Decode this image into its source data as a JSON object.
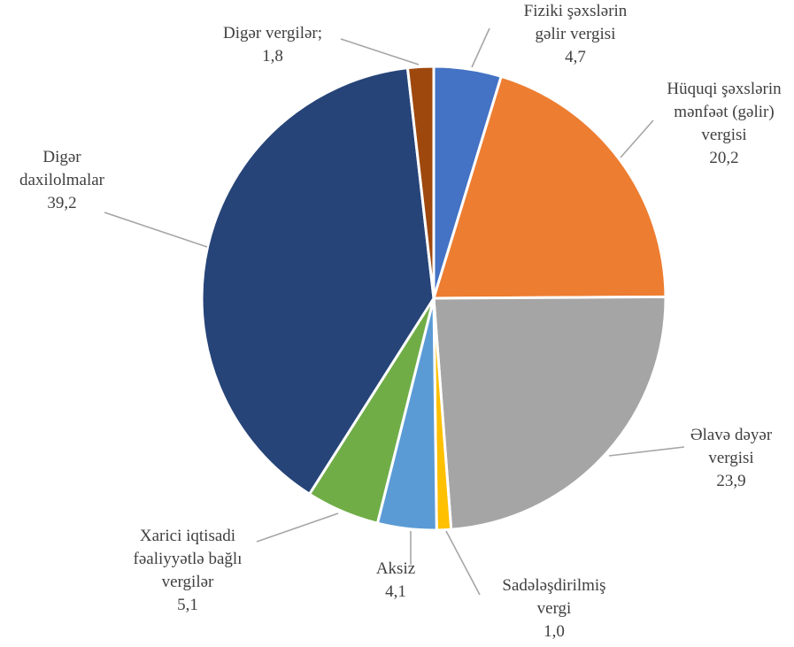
{
  "chart_data": {
    "type": "pie",
    "title": "",
    "start_angle_deg": 90,
    "direction": "clockwise",
    "slices": [
      {
        "label_lines": [
          "Fiziki şəxslərin",
          "gəlir vergisi"
        ],
        "value": 4.7,
        "value_label": "4,7",
        "color": "#4472c4"
      },
      {
        "label_lines": [
          "Hüquqi şəxslərin",
          "mənfəət (gəlir)",
          "vergisi"
        ],
        "value": 20.2,
        "value_label": "20,2",
        "color": "#ed7d31"
      },
      {
        "label_lines": [
          "Əlavə dəyər",
          "vergisi"
        ],
        "value": 23.9,
        "value_label": "23,9",
        "color": "#a5a5a5"
      },
      {
        "label_lines": [
          "Sadələşdirilmiş",
          "vergi"
        ],
        "value": 1.0,
        "value_label": "1,0",
        "color": "#ffc000"
      },
      {
        "label_lines": [
          "Aksiz"
        ],
        "value": 4.1,
        "value_label": "4,1",
        "color": "#5b9bd5"
      },
      {
        "label_lines": [
          "Xarici iqtisadi",
          "fəaliyyətlə bağlı",
          "vergilər"
        ],
        "value": 5.1,
        "value_label": "5,1",
        "color": "#70ad47"
      },
      {
        "label_lines": [
          "Digər",
          "daxilolmalar"
        ],
        "value": 39.2,
        "value_label": "39,2",
        "color": "#264478"
      },
      {
        "label_lines": [
          "Digər vergilər;"
        ],
        "value": 1.8,
        "value_label": "1,8",
        "color": "#9e480e"
      }
    ]
  }
}
